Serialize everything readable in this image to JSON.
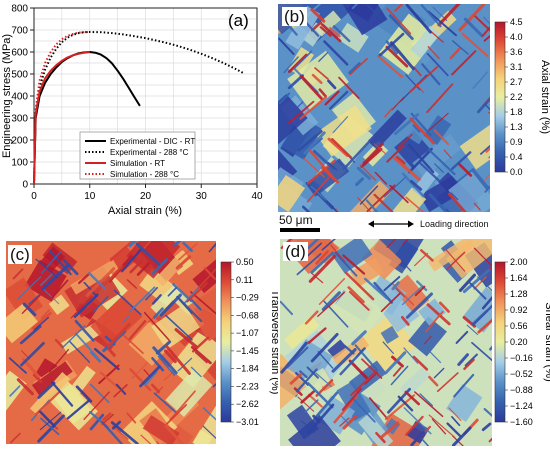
{
  "chart_data": [
    {
      "panel": "(a)",
      "type": "line",
      "xlabel": "Axial strain (%)",
      "ylabel": "Engineering stress (MPa)",
      "xlim": [
        0,
        40
      ],
      "ylim": [
        0,
        800
      ],
      "xticks": [
        0,
        10,
        20,
        30,
        40
      ],
      "yticks": [
        0,
        100,
        200,
        300,
        400,
        500,
        600,
        700,
        800
      ],
      "grid": true,
      "legend_position": "bottom-center",
      "series": [
        {
          "name": "Experimental - DIC - RT",
          "color": "#000000",
          "dash": "solid",
          "x": [
            0,
            0.3,
            1,
            2,
            3,
            4,
            5,
            6,
            7,
            8,
            9,
            10,
            11,
            12,
            13,
            14,
            15,
            16,
            17,
            18,
            19
          ],
          "y": [
            0,
            300,
            400,
            460,
            500,
            530,
            555,
            572,
            585,
            594,
            598,
            600,
            597,
            588,
            572,
            548,
            515,
            478,
            437,
            395,
            355
          ]
        },
        {
          "name": "Experimental - 288 °C",
          "color": "#000000",
          "dash": "dotted",
          "x": [
            0,
            0.3,
            1,
            2,
            3,
            4,
            5,
            6,
            7,
            8,
            9,
            10,
            12,
            14,
            16,
            18,
            20,
            22,
            24,
            26,
            28,
            30,
            32,
            34,
            36,
            37.5
          ],
          "y": [
            0,
            330,
            440,
            520,
            575,
            615,
            645,
            665,
            678,
            686,
            690,
            691,
            690,
            686,
            680,
            672,
            663,
            652,
            640,
            626,
            610,
            592,
            572,
            550,
            525,
            505
          ]
        },
        {
          "name": "Simulation - RT",
          "color": "#d62020",
          "dash": "solid",
          "x": [
            0,
            0.3,
            1,
            2,
            3,
            4,
            5,
            6,
            7,
            8,
            9,
            10
          ],
          "y": [
            0,
            320,
            420,
            480,
            515,
            540,
            560,
            575,
            585,
            592,
            597,
            600
          ]
        },
        {
          "name": "Simulation - 288 °C",
          "color": "#d62020",
          "dash": "dotted",
          "x": [
            0,
            0.3,
            1,
            2,
            3,
            4,
            5,
            6,
            7,
            8,
            9,
            10
          ],
          "y": [
            0,
            340,
            470,
            550,
            600,
            635,
            658,
            673,
            682,
            688,
            690,
            691
          ]
        }
      ]
    },
    {
      "panel": "(b)",
      "type": "heatmap",
      "colorbar_label": "Axial strain (%)",
      "colorbar_ticks": [
        "4.5",
        "4.0",
        "3.6",
        "3.1",
        "2.7",
        "2.2",
        "1.8",
        "1.3",
        "0.9",
        "0.4",
        "0.0"
      ]
    },
    {
      "panel": "(c)",
      "type": "heatmap",
      "colorbar_label": "Transverse strain (%)",
      "colorbar_ticks": [
        "0.50",
        "0.11",
        "−0.29",
        "−0.68",
        "−1.07",
        "−1.45",
        "−1.84",
        "−2.23",
        "−2.62",
        "−3.01"
      ]
    },
    {
      "panel": "(d)",
      "type": "heatmap",
      "colorbar_label": "Shear strain (%)",
      "colorbar_ticks": [
        "2.00",
        "1.64",
        "1.28",
        "0.92",
        "0.56",
        "0.20",
        "−0.16",
        "−0.52",
        "−0.88",
        "−1.24",
        "−1.60"
      ]
    }
  ],
  "scale_bar": "50 μm",
  "loading_direction": "Loading direction",
  "colors": {
    "cmap": [
      "#2b3a9c",
      "#3560b0",
      "#5a92c8",
      "#a5cde6",
      "#e8eea0",
      "#f5d27a",
      "#f0935a",
      "#dd4a36",
      "#b5152b"
    ],
    "experimental": "#000000",
    "simulation": "#d62020"
  }
}
